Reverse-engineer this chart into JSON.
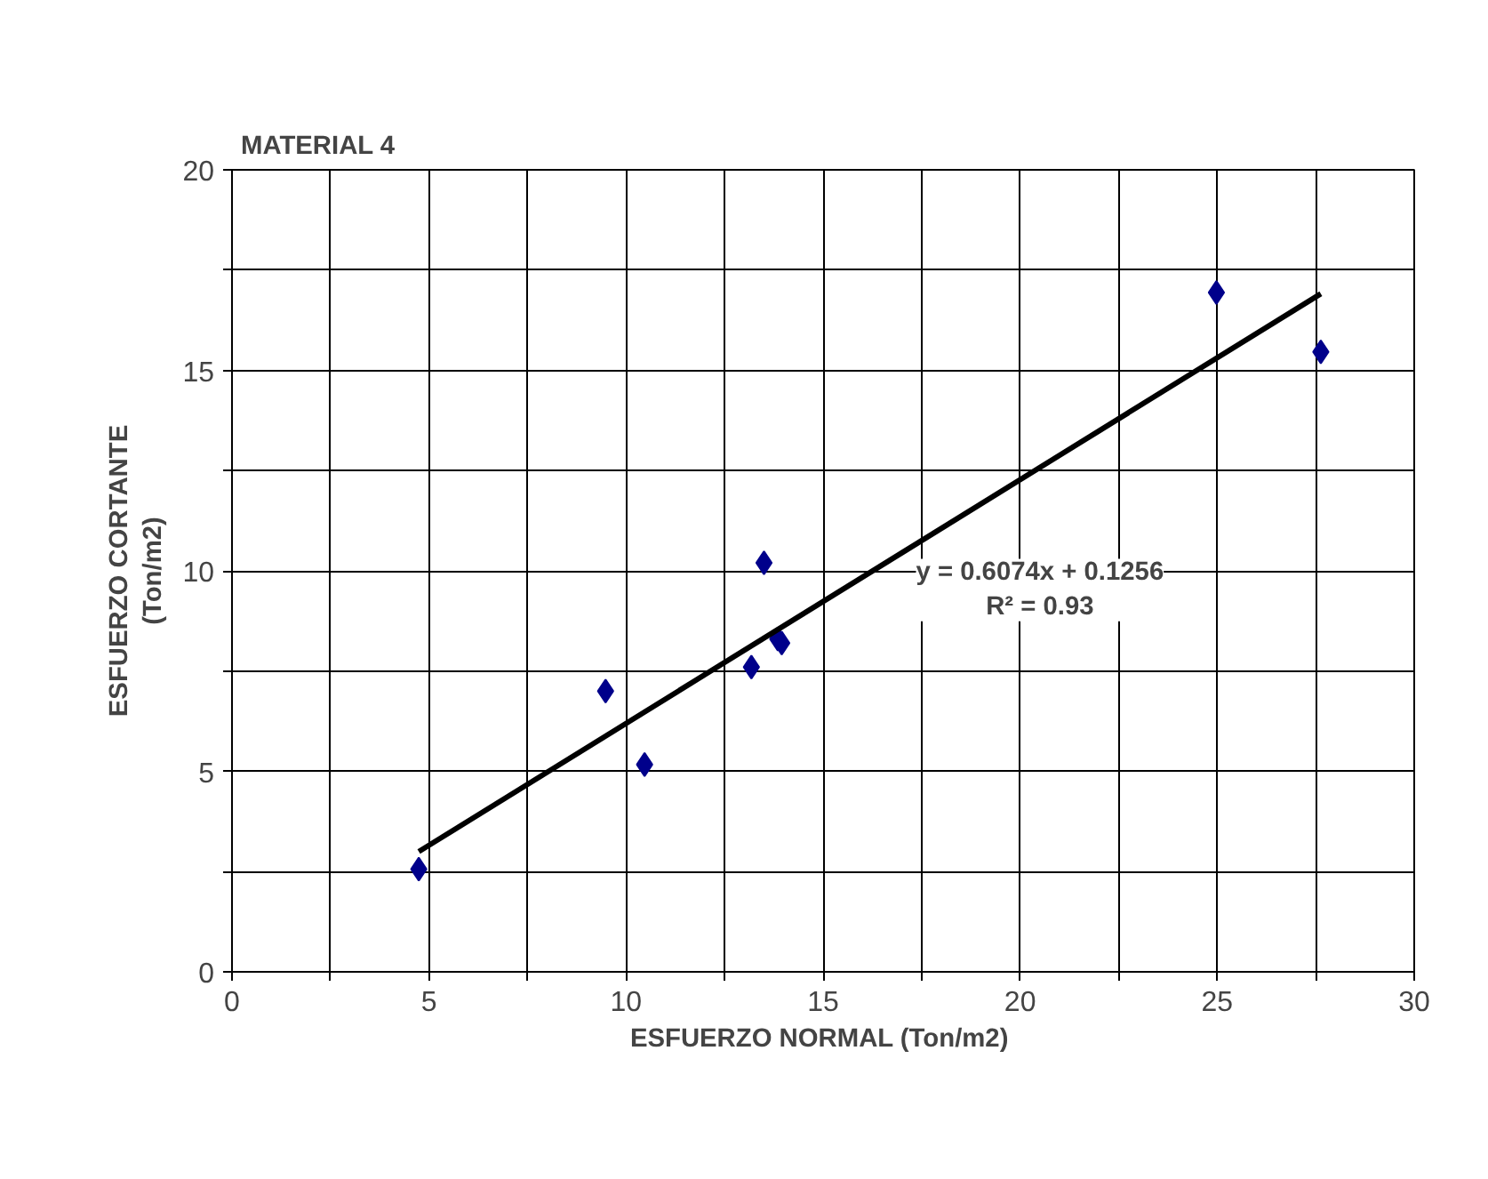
{
  "chart_data": {
    "type": "scatter",
    "title": "MATERIAL  4",
    "xlabel": "ESFUERZO NORMAL  (Ton/m2)",
    "ylabel": "ESFUERZO CORTANTE\n(Ton/m2)",
    "annotations": [
      "y = 0.6074x + 0.1256\nR² = 0.93"
    ],
    "xlim": [
      0,
      30
    ],
    "ylim": [
      0,
      20
    ],
    "xticks": [
      0,
      {
        "value": 2.5,
        "label": null
      },
      5,
      {
        "value": 7.5,
        "label": null
      },
      10,
      {
        "value": 12.5,
        "label": null
      },
      15,
      {
        "value": 17.5,
        "label": null
      },
      20,
      {
        "value": 22.5,
        "label": null
      },
      25,
      {
        "value": 27.5,
        "label": null
      },
      30
    ],
    "yticks": [
      0,
      {
        "value": 2.5,
        "label": null
      },
      5,
      {
        "value": 7.5,
        "label": null
      },
      10,
      {
        "value": 12.5,
        "label": null
      },
      15,
      {
        "value": 17.5,
        "label": null
      },
      20
    ],
    "grid": true,
    "series": [
      {
        "marker": "diamond",
        "color": "#00008b",
        "x": [
          4.74,
          9.48,
          10.47,
          13.18,
          13.5,
          13.85,
          13.95,
          24.98,
          27.63
        ],
        "values": [
          2.56,
          7.0,
          5.17,
          7.6,
          10.2,
          8.3,
          8.2,
          16.94,
          15.46
        ]
      },
      {
        "type": "line",
        "color": "#000000",
        "x": [
          4.74,
          27.63
        ],
        "values": [
          3.0,
          16.91
        ]
      }
    ]
  }
}
